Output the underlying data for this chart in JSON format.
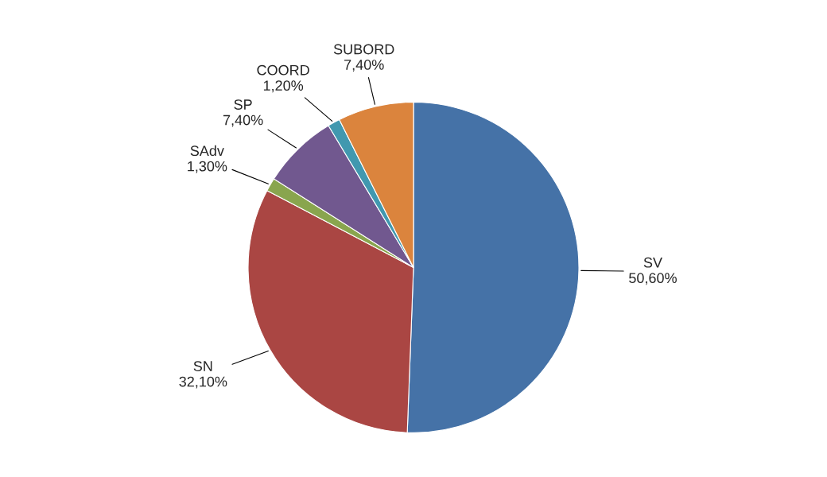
{
  "chart_data": {
    "type": "pie",
    "categories": [
      "SV",
      "SN",
      "SAdv",
      "SP",
      "COORD",
      "SUBORD"
    ],
    "values": [
      50.6,
      32.1,
      1.3,
      7.4,
      1.2,
      7.4
    ],
    "value_labels": [
      "50,60%",
      "32,10%",
      "1,30%",
      "7,40%",
      "1,20%",
      "7,40%"
    ],
    "colors": [
      "#4572a7",
      "#aa4643",
      "#89a54e",
      "#71588f",
      "#4198af",
      "#db843d"
    ],
    "legend": false
  }
}
